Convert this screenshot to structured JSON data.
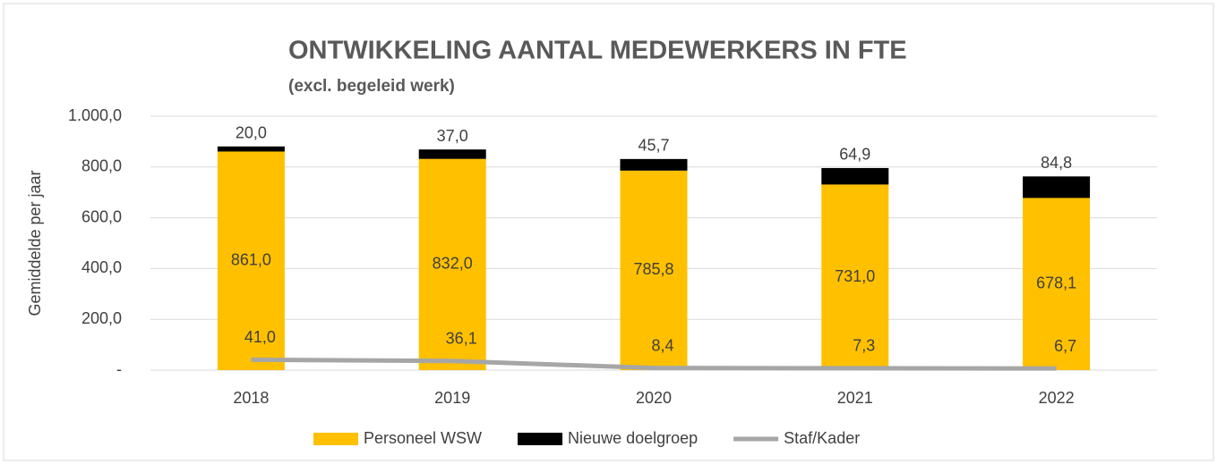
{
  "chart_data": {
    "type": "bar",
    "stacked": true,
    "title": "ONTWIKKELING AANTAL MEDEWERKERS IN FTE",
    "subtitle": "(excl. begeleid werk)",
    "y_label": "Gemiddelde per jaar",
    "categories": [
      "2018",
      "2019",
      "2020",
      "2021",
      "2022"
    ],
    "series": [
      {
        "name": "Personeel WSW",
        "type": "bar",
        "color": "#ffc000",
        "values": [
          861.0,
          832.0,
          785.8,
          731.0,
          678.1
        ],
        "value_labels": [
          "861,0",
          "832,0",
          "785,8",
          "731,0",
          "678,1"
        ]
      },
      {
        "name": "Nieuwe doelgroep",
        "type": "bar",
        "color": "#000000",
        "values": [
          20.0,
          37.0,
          45.7,
          64.9,
          84.8
        ],
        "value_labels": [
          "20,0",
          "37,0",
          "45,7",
          "64,9",
          "84,8"
        ]
      },
      {
        "name": "Staf/Kader",
        "type": "line",
        "color": "#a6a6a6",
        "values": [
          41.0,
          36.1,
          8.4,
          7.3,
          6.7
        ],
        "value_labels": [
          "41,0",
          "36,1",
          "8,4",
          "7,3",
          "6,7"
        ]
      }
    ],
    "ylim": [
      0,
      1000
    ],
    "yticks": [
      {
        "value": 0,
        "label": "-"
      },
      {
        "value": 200,
        "label": "200,0"
      },
      {
        "value": 400,
        "label": "400,0"
      },
      {
        "value": 600,
        "label": "600,0"
      },
      {
        "value": 800,
        "label": "800,0"
      },
      {
        "value": 1000,
        "label": "1.000,0"
      }
    ],
    "grid": true,
    "legend": "bottom"
  }
}
